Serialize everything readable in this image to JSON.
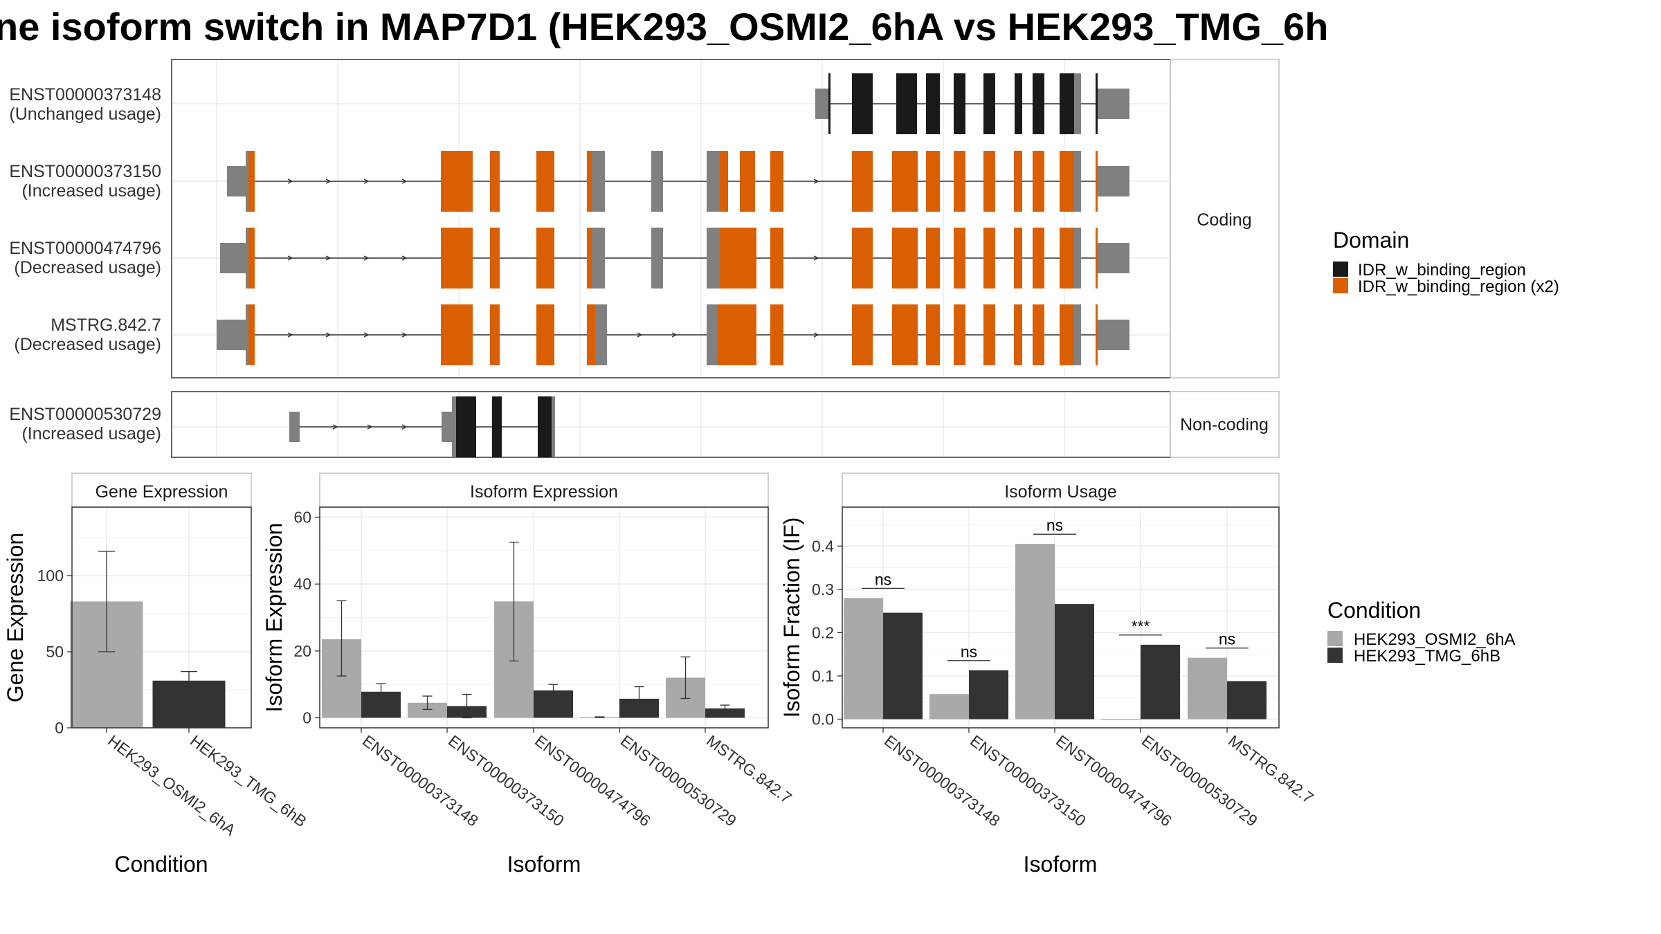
{
  "title": "ne isoform switch in MAP7D1 (HEK293_OSMI2_6hA vs HEK293_TMG_6h",
  "colors": {
    "utr": "#808080",
    "domain_black": "#1a1a1a",
    "domain_orange": "#d95f02",
    "cond_a": "#a9a9a9",
    "cond_b": "#333333",
    "panel_border": "#333333",
    "strip_border": "#bfbfbf",
    "grid": "#ebebeb"
  },
  "structure": {
    "facets": [
      "Coding",
      "Non-coding"
    ],
    "transcripts": [
      {
        "id": "ENST00000373148",
        "usage": "(Unchanged usage)",
        "facet": "Coding"
      },
      {
        "id": "ENST00000373150",
        "usage": "(Increased usage)",
        "facet": "Coding"
      },
      {
        "id": "ENST00000474796",
        "usage": "(Decreased usage)",
        "facet": "Coding"
      },
      {
        "id": "MSTRG.842.7",
        "usage": "(Decreased usage)",
        "facet": "Coding"
      },
      {
        "id": "ENST00000530729",
        "usage": "(Increased usage)",
        "facet": "Non-coding"
      }
    ],
    "domain_legend": {
      "title": "Domain",
      "items": [
        {
          "label": "IDR_w_binding_region",
          "color": "#1a1a1a"
        },
        {
          "label": "IDR_w_binding_region (x2)",
          "color": "#d95f02"
        }
      ]
    }
  },
  "chart_data": [
    {
      "type": "bar",
      "title": "Gene Expression",
      "xlabel": "Condition",
      "ylabel": "Gene Expression",
      "categories": [
        "HEK293_OSMI2_6hA",
        "HEK293_TMG_6hB"
      ],
      "values": [
        83,
        31
      ],
      "error_low": [
        50,
        26
      ],
      "error_high": [
        116,
        37
      ],
      "ylim": [
        0,
        145
      ],
      "yticks": [
        0,
        50,
        100
      ]
    },
    {
      "type": "bar",
      "title": "Isoform Expression",
      "xlabel": "Isoform",
      "ylabel": "Isoform Expression",
      "categories": [
        "ENST00000373148",
        "ENST00000373150",
        "ENST00000474796",
        "ENST00000530729",
        "MSTRG.842.7"
      ],
      "series": [
        {
          "name": "HEK293_OSMI2_6hA",
          "values": [
            23.5,
            4.5,
            34.8,
            0.2,
            12
          ],
          "error_low": [
            12.5,
            2.5,
            17,
            0.1,
            5.8
          ],
          "error_high": [
            35,
            6.5,
            52.5,
            0.3,
            18.2
          ]
        },
        {
          "name": "HEK293_TMG_6hB",
          "values": [
            7.8,
            3.5,
            8.2,
            5.7,
            2.8
          ],
          "error_low": [
            5.5,
            0,
            6.5,
            2,
            1.8
          ],
          "error_high": [
            10.2,
            7,
            10,
            9.3,
            3.8
          ]
        }
      ],
      "ylim": [
        -3,
        63
      ],
      "yticks": [
        0,
        20,
        40,
        60
      ]
    },
    {
      "type": "bar",
      "title": "Isoform Usage",
      "xlabel": "Isoform",
      "ylabel": "Isoform Fraction (IF)",
      "categories": [
        "ENST00000373148",
        "ENST00000373150",
        "ENST00000474796",
        "ENST00000530729",
        "MSTRG.842.7"
      ],
      "series": [
        {
          "name": "HEK293_OSMI2_6hA",
          "values": [
            0.28,
            0.058,
            0.405,
            0.0,
            0.142
          ]
        },
        {
          "name": "HEK293_TMG_6hB",
          "values": [
            0.246,
            0.113,
            0.266,
            0.172,
            0.088
          ]
        }
      ],
      "significance": [
        "ns",
        "ns",
        "ns",
        "***",
        "ns"
      ],
      "ylim": [
        -0.02,
        0.49
      ],
      "yticks": [
        0.0,
        0.1,
        0.2,
        0.3,
        0.4
      ],
      "ytick_labels": [
        "0.0",
        "0.1",
        "0.2",
        "0.3",
        "0.4"
      ]
    }
  ],
  "condition_legend": {
    "title": "Condition",
    "items": [
      {
        "label": "HEK293_OSMI2_6hA",
        "color": "#a9a9a9"
      },
      {
        "label": "HEK293_TMG_6hB",
        "color": "#333333"
      }
    ]
  }
}
